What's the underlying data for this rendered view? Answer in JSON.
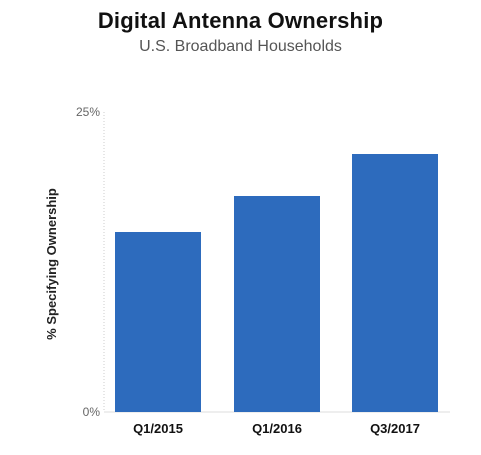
{
  "chart_data": {
    "type": "bar",
    "title": "Digital Antenna Ownership",
    "subtitle": "U.S. Broadband Households",
    "ylabel": "% Specifying Ownership",
    "xlabel": "",
    "categories": [
      "Q1/2015",
      "Q1/2016",
      "Q3/2017"
    ],
    "values": [
      15,
      18,
      21.5
    ],
    "ylim": [
      0,
      25
    ],
    "y_ticks": [
      "0%",
      "25%"
    ],
    "y_tick_values": [
      0,
      25
    ],
    "grid": false,
    "legend": "none",
    "bar_color": "#2d6bbd",
    "axis_color": "#cccccc"
  }
}
